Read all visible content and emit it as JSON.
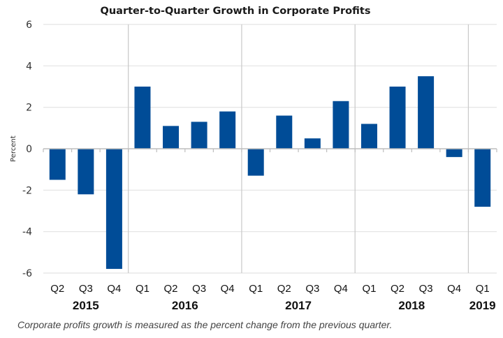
{
  "chart_data": {
    "type": "bar",
    "title": "Quarter-to-Quarter Growth in Corporate Profits",
    "ylabel": "Percent",
    "xlabel": "",
    "ylim": [
      -6,
      6
    ],
    "yticks": [
      6,
      4,
      2,
      0,
      -2,
      -4,
      -6
    ],
    "grid": true,
    "categories": [
      "Q2",
      "Q3",
      "Q4",
      "Q1",
      "Q2",
      "Q3",
      "Q4",
      "Q1",
      "Q2",
      "Q3",
      "Q4",
      "Q1",
      "Q2",
      "Q3",
      "Q4",
      "Q1"
    ],
    "years": [
      {
        "label": "2015",
        "quarters": 3
      },
      {
        "label": "2016",
        "quarters": 4
      },
      {
        "label": "2017",
        "quarters": 4
      },
      {
        "label": "2018",
        "quarters": 4
      },
      {
        "label": "2019",
        "quarters": 1
      }
    ],
    "values": [
      -1.5,
      -2.2,
      -5.8,
      3.0,
      1.1,
      1.3,
      1.8,
      -1.3,
      1.6,
      0.5,
      2.3,
      1.2,
      3.0,
      3.5,
      -0.4,
      -2.8
    ],
    "bar_color": "#004C97",
    "note": "Corporate profits growth is measured as the percent change from the previous quarter."
  }
}
